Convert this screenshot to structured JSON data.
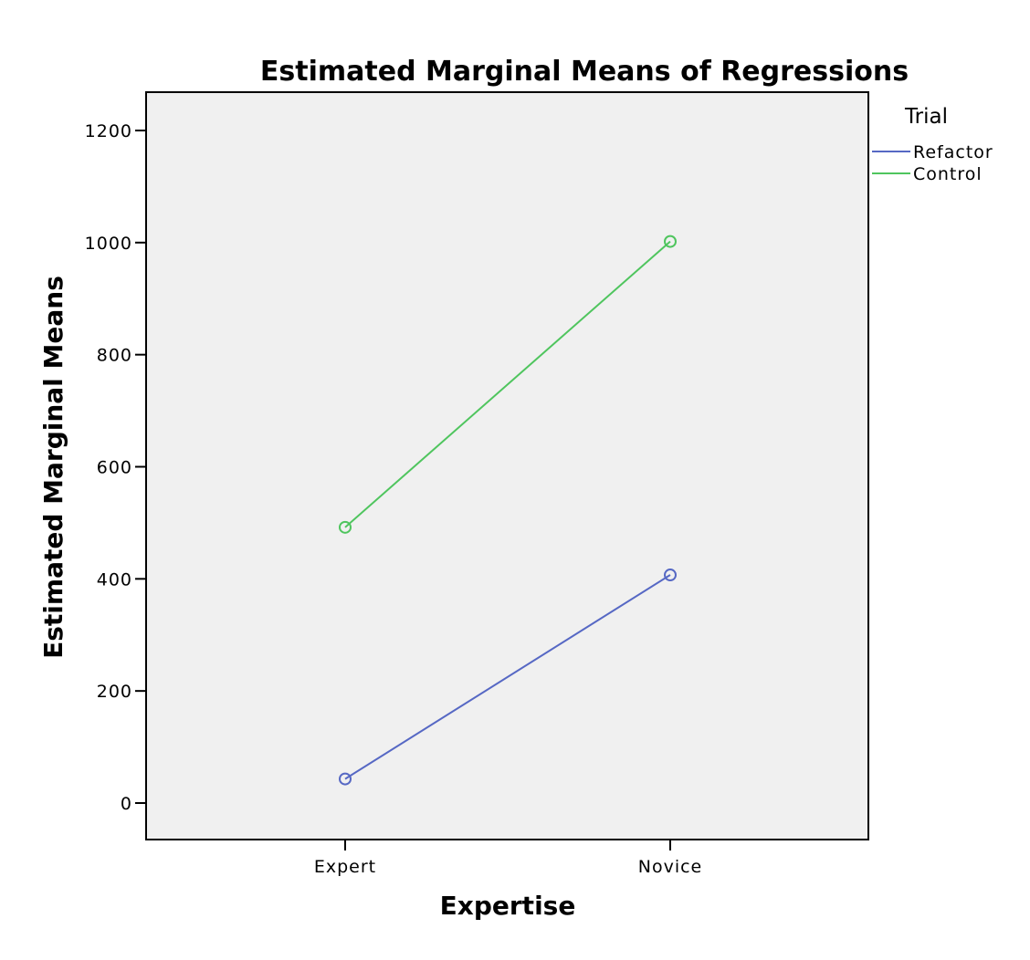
{
  "chart_data": {
    "type": "line",
    "title": "Estimated Marginal Means of Regressions",
    "xlabel": "Expertise",
    "ylabel": "Estimated Marginal Means",
    "categories": [
      "Expert",
      "Novice"
    ],
    "ylim": [
      -60,
      1260
    ],
    "yticks": [
      0,
      200,
      400,
      600,
      800,
      1000,
      1200
    ],
    "grid": false,
    "legend": {
      "title": "Trial",
      "placement": "right-top"
    },
    "series": [
      {
        "name": "Refactor",
        "values": [
          43,
          407
        ],
        "color": "#5668c4"
      },
      {
        "name": "Control",
        "values": [
          492,
          1002
        ],
        "color": "#4fc55e"
      }
    ],
    "plot_background": "#f0f0f0"
  }
}
